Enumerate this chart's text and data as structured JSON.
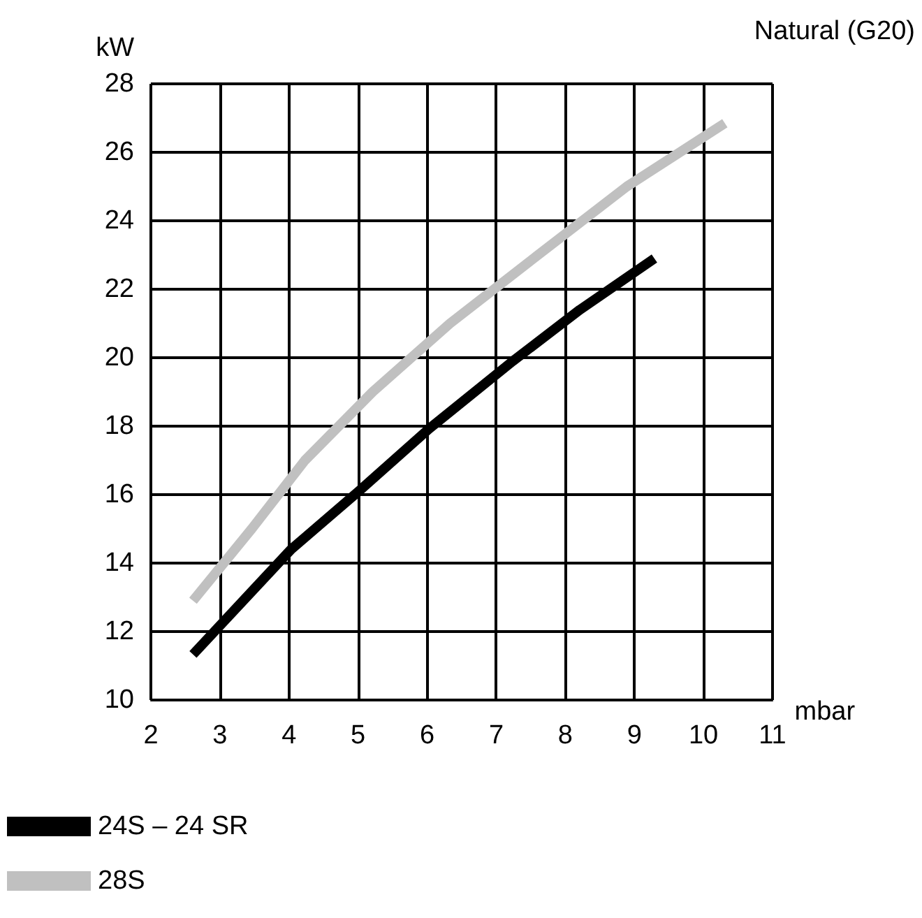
{
  "chart_data": {
    "type": "line",
    "title": "Natural (G20)",
    "xlabel": "mbar",
    "ylabel": "kW",
    "xlim": [
      2,
      11
    ],
    "xticks": [
      2,
      3,
      4,
      5,
      6,
      7,
      8,
      9,
      10,
      11
    ],
    "ylim": [
      10,
      28
    ],
    "yticks": [
      10,
      12,
      14,
      16,
      18,
      20,
      22,
      24,
      26,
      28
    ],
    "grid": true,
    "legend": "bottom left",
    "marker": "none",
    "line_style": "solid",
    "series": [
      {
        "name": "24S – 24 SR",
        "color": "#000000",
        "x": [
          2.61,
          4.03,
          5.01,
          6.03,
          7.24,
          8.21,
          9.29
        ],
        "values": [
          11.33,
          14.4,
          16.1,
          17.93,
          19.9,
          21.4,
          22.9
        ]
      },
      {
        "name": "28S",
        "color": "#c0c0c0",
        "x": [
          2.61,
          3.46,
          4.23,
          5.21,
          6.33,
          7.54,
          8.89,
          10.31
        ],
        "values": [
          12.9,
          15.0,
          17.0,
          19.0,
          21.0,
          22.9,
          25.0,
          26.85
        ]
      }
    ]
  }
}
